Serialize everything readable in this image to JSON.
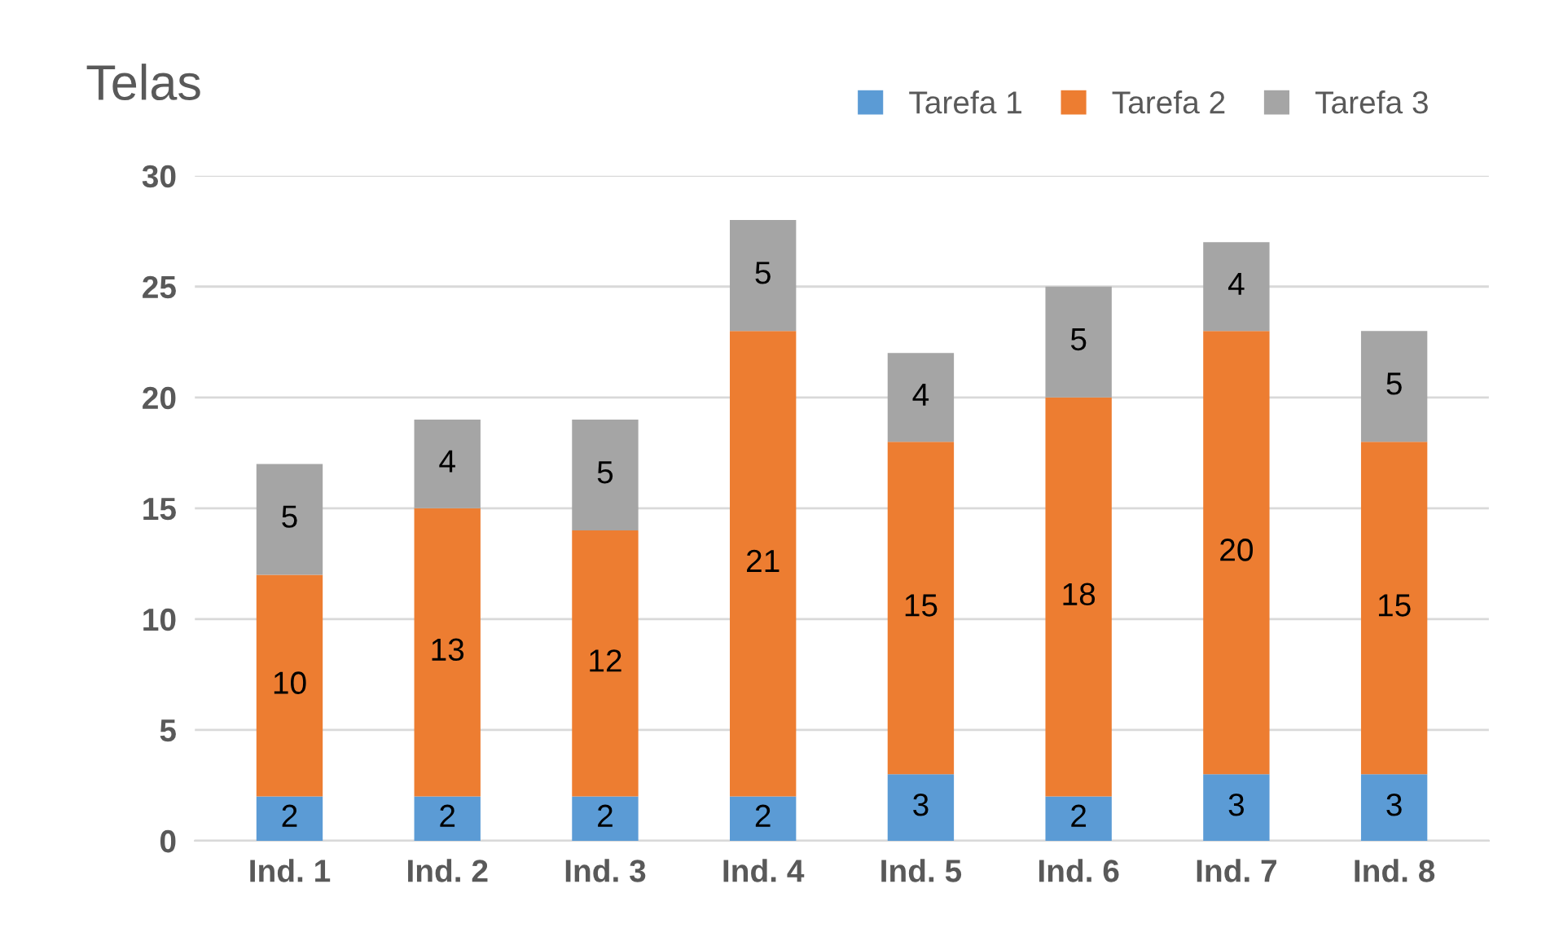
{
  "chart_data": {
    "type": "bar",
    "title": "Telas",
    "stacked": true,
    "categories": [
      "Ind. 1",
      "Ind. 2",
      "Ind. 3",
      "Ind. 4",
      "Ind. 5",
      "Ind. 6",
      "Ind. 7",
      "Ind. 8"
    ],
    "series": [
      {
        "name": "Tarefa 1",
        "color": "#5b9bd5",
        "values": [
          2,
          2,
          2,
          2,
          3,
          2,
          3,
          3
        ]
      },
      {
        "name": "Tarefa 2",
        "color": "#ed7d31",
        "values": [
          10,
          13,
          12,
          21,
          15,
          18,
          20,
          15
        ]
      },
      {
        "name": "Tarefa 3",
        "color": "#a5a5a5",
        "values": [
          5,
          4,
          5,
          5,
          4,
          5,
          4,
          5
        ]
      }
    ],
    "ylim": [
      0,
      30
    ],
    "yticks": [
      0,
      5,
      10,
      15,
      20,
      25,
      30
    ],
    "grid": "y",
    "legend": "top right",
    "data_labels": true
  }
}
